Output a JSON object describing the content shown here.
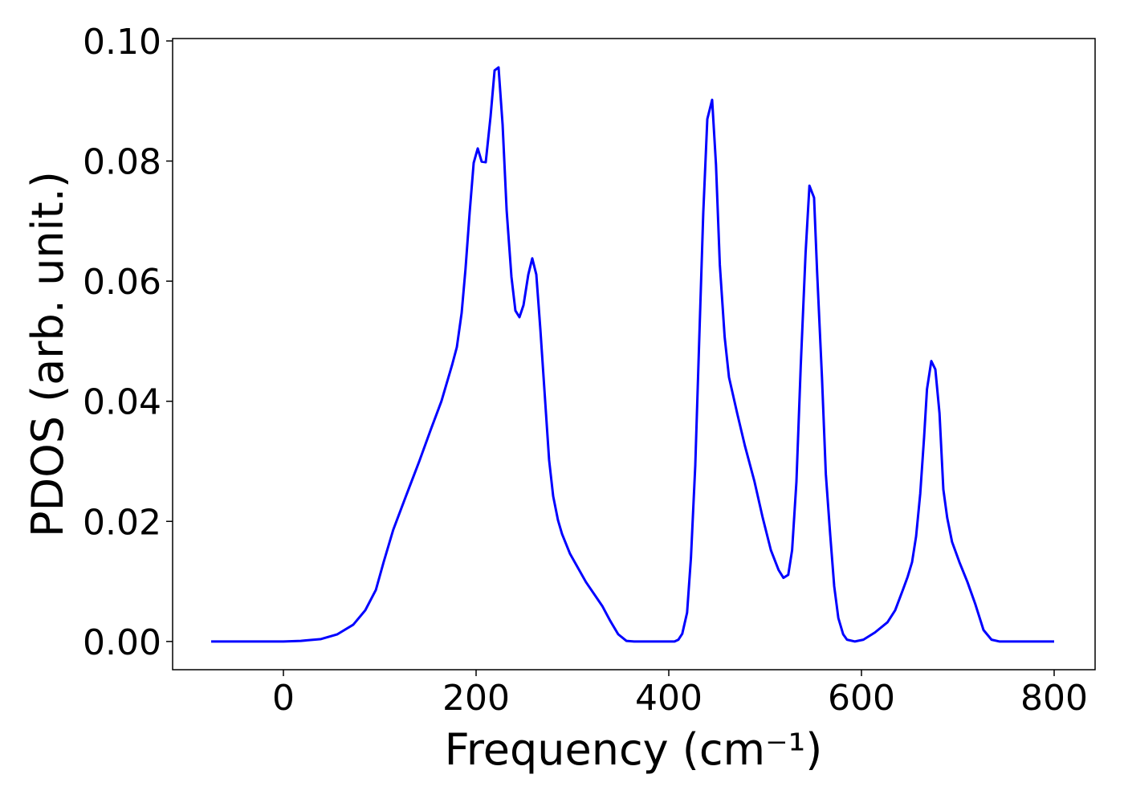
{
  "chart_data": {
    "type": "line",
    "xlabel": "Frequency (cm⁻¹)",
    "ylabel": "PDOS (arb. unit.)",
    "color": "#0000ff",
    "xlim": [
      -115,
      842.5
    ],
    "ylim": [
      -0.0047,
      0.1004
    ],
    "xticks": [
      0,
      200,
      400,
      600,
      800
    ],
    "yticks": [
      {
        "value": 0,
        "label": "0.00"
      },
      {
        "value": 0.02,
        "label": "0.02"
      },
      {
        "value": 0.04,
        "label": "0.04"
      },
      {
        "value": 0.06,
        "label": "0.06"
      },
      {
        "value": 0.08,
        "label": "0.08"
      },
      {
        "value": 0.1,
        "label": "0.10"
      }
    ],
    "x": [
      -75,
      0,
      18,
      39,
      56,
      72.5,
      85,
      96,
      104,
      114,
      126.7,
      141,
      153,
      164,
      175,
      180,
      185,
      189,
      193.3,
      197.5,
      201.7,
      205.8,
      210,
      215,
      219.2,
      223.3,
      227.5,
      231.7,
      236.7,
      240.8,
      245,
      249.2,
      254.2,
      258.3,
      262.5,
      266.7,
      271.7,
      275.8,
      280,
      285,
      289.2,
      297.5,
      314,
      331,
      339,
      347.5,
      356,
      364,
      406,
      410,
      414,
      419,
      423,
      427.5,
      431.7,
      435.8,
      440,
      445,
      449,
      453,
      458,
      462.5,
      471,
      479,
      489,
      497.5,
      506,
      514,
      519,
      524,
      528,
      532.5,
      537,
      542,
      546,
      550.8,
      554,
      559,
      563,
      567.5,
      571.7,
      576,
      581,
      585,
      593,
      602,
      614,
      627,
      635,
      643,
      648,
      652.5,
      656.7,
      661,
      665,
      668,
      672.5,
      676.7,
      681,
      685,
      689,
      694,
      701.7,
      710,
      718,
      726.7,
      735,
      743,
      800
    ],
    "values": [
      0,
      0,
      0.0001,
      0.0004,
      0.0012,
      0.0028,
      0.0052,
      0.0086,
      0.0132,
      0.0186,
      0.024,
      0.03,
      0.0353,
      0.04,
      0.046,
      0.049,
      0.0547,
      0.062,
      0.0714,
      0.0797,
      0.0821,
      0.0799,
      0.0798,
      0.0874,
      0.0951,
      0.0956,
      0.0861,
      0.0718,
      0.0607,
      0.0551,
      0.054,
      0.056,
      0.0611,
      0.0638,
      0.0611,
      0.052,
      0.04,
      0.0302,
      0.0242,
      0.0202,
      0.0179,
      0.0146,
      0.0099,
      0.0059,
      0.0035,
      0.0012,
      0.0001,
      0,
      0,
      0.0003,
      0.0013,
      0.0048,
      0.0139,
      0.0293,
      0.0507,
      0.0714,
      0.087,
      0.0902,
      0.0794,
      0.0627,
      0.0507,
      0.044,
      0.038,
      0.0326,
      0.0266,
      0.0206,
      0.0152,
      0.0119,
      0.0106,
      0.0111,
      0.0152,
      0.0266,
      0.046,
      0.0647,
      0.0759,
      0.0739,
      0.0614,
      0.044,
      0.0279,
      0.0179,
      0.0092,
      0.0039,
      0.0012,
      0.0003,
      0,
      0.0003,
      0.0015,
      0.0032,
      0.0052,
      0.0086,
      0.0108,
      0.0132,
      0.0175,
      0.0246,
      0.034,
      0.042,
      0.0467,
      0.0453,
      0.038,
      0.0253,
      0.0206,
      0.0166,
      0.0132,
      0.0099,
      0.0063,
      0.0019,
      0.0003,
      0,
      0
    ]
  }
}
